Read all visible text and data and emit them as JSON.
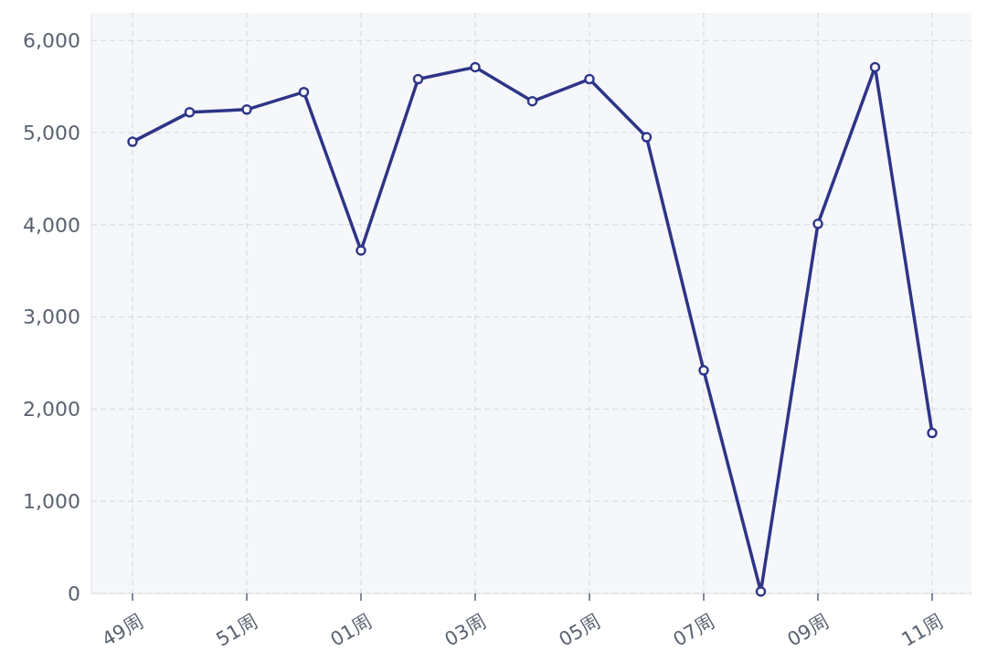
{
  "chart_data": {
    "type": "line",
    "categories": [
      "49周",
      null,
      "51周",
      null,
      "01周",
      null,
      "03周",
      null,
      "05周",
      null,
      "07周",
      null,
      "09周",
      null,
      "11周"
    ],
    "series": [
      {
        "color": "#2e3587",
        "values": [
          4900,
          5220,
          5250,
          5440,
          3720,
          5580,
          5710,
          5340,
          5580,
          4950,
          2420,
          20,
          4010,
          5710,
          1740
        ]
      }
    ],
    "ylim": [
      0,
      6300
    ],
    "yticks": [
      {
        "value": 0,
        "label": "0"
      },
      {
        "value": 1000,
        "label": "1,000"
      },
      {
        "value": 2000,
        "label": "2,000"
      },
      {
        "value": 3000,
        "label": "3,000"
      },
      {
        "value": 4000,
        "label": "4,000"
      },
      {
        "value": 5000,
        "label": "5,000"
      },
      {
        "value": 6000,
        "label": "6,000"
      }
    ],
    "grid": true,
    "marker": "circle",
    "line_style": "solid"
  }
}
